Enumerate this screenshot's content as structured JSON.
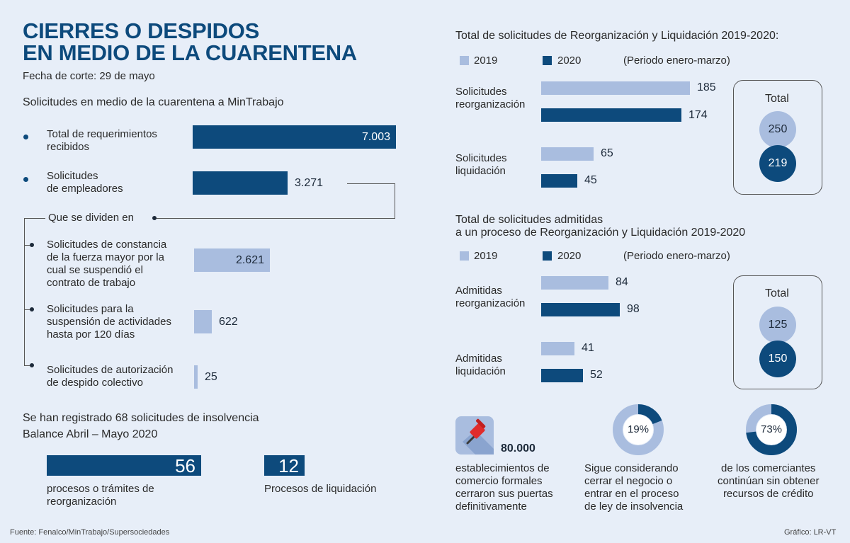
{
  "header": {
    "title_line1": "CIERRES O DESPIDOS",
    "title_line2": "EN MEDIO DE LA CUARENTENA",
    "cutoff": "Fecha de corte: 29 de mayo"
  },
  "left": {
    "section_title": "Solicitudes en medio de la cuarentena a MinTrabajo",
    "split_label": "Que se dividen en",
    "insolvency_title": "Se han registrado 68 solicitudes de insolvencia",
    "insolvency_subtitle": "Balance Abril – Mayo 2020"
  },
  "right": {
    "legend_2019": "2019",
    "legend_2020": "2020",
    "period_note": "(Periodo enero-marzo)",
    "total_label": "Total"
  },
  "colors": {
    "dark": "#0d4a7c",
    "light": "#a9bddf",
    "background": "#e7eef8"
  },
  "chart_data": [
    {
      "type": "bar",
      "title": "Solicitudes en medio de la cuarentena a MinTrabajo",
      "categories": [
        "Total de requerimientos\nrecibidos",
        "Solicitudes\nde empleadores",
        "Solicitudes de constancia\nde la fuerza mayor por la\ncual se suspendió el\ncontrato de trabajo",
        "Solicitudes para la\nsuspensión de actividades\nhasta por 120 días",
        "Solicitudes de autorización\nde despido colectivo"
      ],
      "values": [
        7003,
        3271,
        2621,
        622,
        25
      ],
      "value_labels": [
        "7.003",
        "3.271",
        "2.621",
        "622",
        "25"
      ]
    },
    {
      "type": "bar",
      "title": "Total de solicitudes de Reorganización y Liquidación 2019-2020:",
      "categories": [
        "Solicitudes\nreorganización",
        "Solicitudes\nliquidación"
      ],
      "series": [
        {
          "name": "2019",
          "values": [
            185,
            65
          ]
        },
        {
          "name": "2020",
          "values": [
            174,
            45
          ]
        }
      ],
      "totals": {
        "2019": 250,
        "2020": 219
      }
    },
    {
      "type": "bar",
      "title": "Total de solicitudes admitidas\na un proceso de Reorganización y Liquidación 2019-2020",
      "categories": [
        "Admitidas\nreorganización",
        "Admitidas\nliquidación"
      ],
      "series": [
        {
          "name": "2019",
          "values": [
            84,
            41
          ]
        },
        {
          "name": "2020",
          "values": [
            98,
            52
          ]
        }
      ],
      "totals": {
        "2019": 125,
        "2020": 150
      }
    },
    {
      "type": "bar",
      "title": "Se han registrado 68 solicitudes de insolvencia",
      "categories": [
        "procesos o trámites de\nreorganización",
        "Procesos de liquidación"
      ],
      "values": [
        56,
        12
      ]
    },
    {
      "type": "pie",
      "labels": [
        "Sigue considerando\ncerrar el negocio o\nentrar en el proceso\nde ley de insolvencia"
      ],
      "values": [
        19
      ],
      "value_label": "19%"
    },
    {
      "type": "pie",
      "labels": [
        "de los comerciantes\ncontinúan sin obtener\nrecursos de crédito"
      ],
      "values": [
        73
      ],
      "value_label": "73%"
    }
  ],
  "stats": {
    "establishments_value": "80.000",
    "establishments_text": "establecimientos de\ncomercio formales\ncerraron sus puertas\ndefinitivamente",
    "establishments_icon": "pushpin-icon"
  },
  "footer": {
    "source": "Fuente: Fenalco/MinTrabajo/Supersociedades",
    "credit": "Gráfico: LR-VT"
  }
}
